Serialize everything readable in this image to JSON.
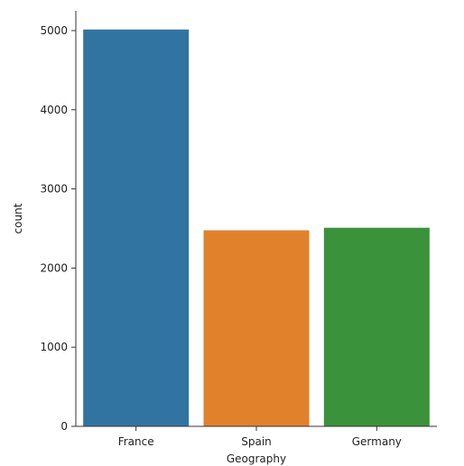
{
  "chart_data": {
    "type": "bar",
    "categories": [
      "France",
      "Spain",
      "Germany"
    ],
    "values": [
      5014,
      2477,
      2509
    ],
    "colors": [
      "#3274a1",
      "#e1812c",
      "#3a923a"
    ],
    "xlabel": "Geography",
    "ylabel": "count",
    "ylim": [
      0,
      5250
    ],
    "yticks": [
      0,
      1000,
      2000,
      3000,
      4000,
      5000
    ],
    "grid": false,
    "legend": "none"
  }
}
